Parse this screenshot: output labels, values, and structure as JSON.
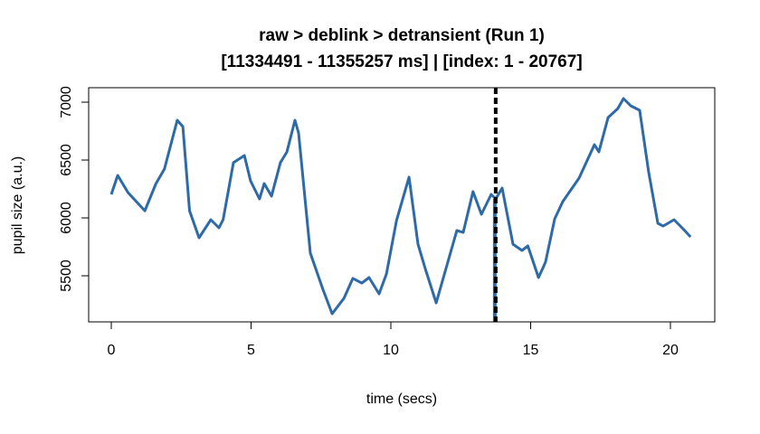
{
  "chart_data": {
    "type": "line",
    "title": [
      "raw > deblink > detransient (Run 1)",
      "[11334491 - 11355257 ms] | [index: 1 - 20767]"
    ],
    "xlabel": "time (secs)",
    "ylabel": "pupil size (a.u.)",
    "xlim": [
      -0.8,
      21.5
    ],
    "ylim": [
      5130,
      7120
    ],
    "xticks": [
      0,
      5,
      10,
      15,
      20
    ],
    "yticks": [
      5500,
      6000,
      6500,
      7000
    ],
    "grid": false,
    "series_color": "#2e6aa8",
    "marker_line": {
      "x": 13.75,
      "style": "dashed",
      "color": "#000000"
    },
    "series": [
      {
        "x": [
          0,
          0.23,
          0.6,
          1.2,
          1.6,
          1.9,
          2.36,
          2.56,
          2.8,
          3.14,
          3.56,
          3.85,
          4.0,
          4.37,
          4.76,
          4.98,
          5.3,
          5.47,
          5.73,
          6.05,
          6.28,
          6.57,
          6.7,
          7.12,
          7.57,
          7.9,
          8.32,
          8.64,
          8.96,
          9.22,
          9.58,
          9.84,
          10.2,
          10.65,
          10.97,
          11.23,
          11.62,
          11.97,
          12.36,
          12.59,
          12.94,
          13.24,
          13.59,
          13.75,
          13.98,
          14.37,
          14.69,
          14.9,
          15.28,
          15.53,
          15.86,
          16.15,
          16.73,
          17.28,
          17.44,
          17.77,
          18.12,
          18.32,
          18.58,
          18.9,
          19.22,
          19.55,
          19.74,
          20.13,
          20.45,
          20.72
        ],
        "y": [
          6203,
          6367,
          6219,
          6062,
          6297,
          6422,
          6844,
          6789,
          6062,
          5828,
          5984,
          5914,
          5984,
          6477,
          6539,
          6320,
          6164,
          6297,
          6188,
          6477,
          6570,
          6844,
          6734,
          5695,
          5383,
          5172,
          5305,
          5477,
          5437,
          5484,
          5344,
          5516,
          5976,
          6352,
          5773,
          5562,
          5266,
          5562,
          5891,
          5875,
          6227,
          6031,
          6203,
          6164,
          6258,
          5773,
          5719,
          5758,
          5484,
          5617,
          5992,
          6141,
          6344,
          6633,
          6570,
          6867,
          6945,
          7031,
          6969,
          6930,
          6398,
          5953,
          5930,
          5984,
          5906,
          5836
        ]
      }
    ]
  }
}
